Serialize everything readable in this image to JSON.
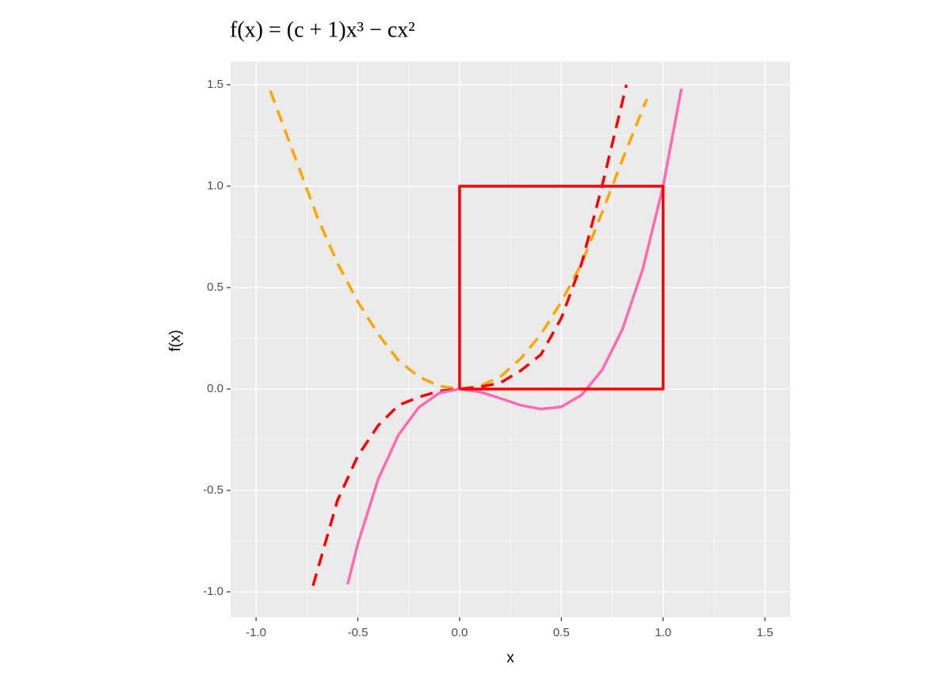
{
  "chart_data": {
    "type": "line",
    "title": "f(x) = (c + 1)x³ − cx²",
    "x_label": "x",
    "y_label": "f(x)",
    "xlim": [
      -1.125,
      1.624
    ],
    "ylim": [
      -1.125,
      1.613
    ],
    "xticks": [
      {
        "value": -1,
        "label": "-1.0"
      },
      -0.5,
      {
        "value": 0,
        "label": "0.0"
      },
      0.5,
      {
        "value": 1,
        "label": "1.0"
      },
      1.5
    ],
    "yticks": [
      {
        "value": -1,
        "label": "-1.0"
      },
      -0.5,
      {
        "value": 0,
        "label": "0.0"
      },
      0.5,
      {
        "value": 1,
        "label": "1.0"
      },
      1.5
    ],
    "x_minor_grid": [
      -0.75,
      -0.25,
      0.25,
      0.75,
      1.25
    ],
    "y_minor_grid": [
      -0.75,
      -0.25,
      0.25,
      0.75,
      1.25
    ],
    "grid": true,
    "series": [
      {
        "color": "#ffa500",
        "dash": true,
        "x": [
          -0.93,
          -0.8,
          -0.7,
          -0.6,
          -0.5,
          -0.4,
          -0.3,
          -0.2,
          -0.1,
          0,
          0.1,
          0.2,
          0.3,
          0.4,
          0.5,
          0.6,
          0.7,
          0.8,
          0.92
        ],
        "values": [
          1.47,
          1.12,
          0.85,
          0.62,
          0.43,
          0.27,
          0.14,
          0.06,
          0.015,
          0,
          0.015,
          0.06,
          0.15,
          0.27,
          0.43,
          0.62,
          0.87,
          1.13,
          1.43
        ]
      },
      {
        "color": "#ff0000",
        "dash": true,
        "x": [
          -0.72,
          -0.6,
          -0.5,
          -0.4,
          -0.3,
          -0.2,
          -0.1,
          0,
          0.1,
          0.2,
          0.3,
          0.4,
          0.5,
          0.6,
          0.7,
          0.82
        ],
        "values": [
          -0.97,
          -0.55,
          -0.33,
          -0.18,
          -0.08,
          -0.04,
          -0.01,
          0,
          0.01,
          0.03,
          0.09,
          0.17,
          0.35,
          0.62,
          1.0,
          1.5
        ]
      },
      {
        "color": "#ff69b4",
        "dash": false,
        "x": [
          -0.55,
          -0.5,
          -0.4,
          -0.3,
          -0.2,
          -0.1,
          0,
          0.1,
          0.2,
          0.3,
          0.4,
          0.5,
          0.6,
          0.7,
          0.8,
          0.9,
          1.0,
          1.09
        ],
        "values": [
          -0.963,
          -0.763,
          -0.445,
          -0.226,
          -0.09,
          -0.02,
          0,
          -0.014,
          -0.046,
          -0.08,
          -0.099,
          -0.088,
          -0.029,
          0.093,
          0.294,
          0.591,
          1.0,
          1.481
        ]
      },
      {
        "color": "#ff0000",
        "dash": false,
        "x": [
          0,
          0,
          1,
          1,
          0
        ],
        "values": [
          0,
          1,
          1,
          0,
          0
        ]
      }
    ]
  }
}
